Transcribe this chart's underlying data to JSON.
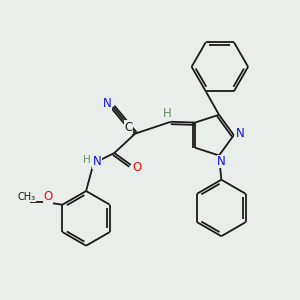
{
  "background_color": "#eaeeea",
  "bond_color": "#1a1a1a",
  "atom_label_colors": {
    "N": "#1010e0",
    "O": "#e01010",
    "C": "#1a1a1a",
    "H": "#6a8a6a"
  },
  "lw": 1.3,
  "fs": 8.5,
  "fs_small": 7.5
}
